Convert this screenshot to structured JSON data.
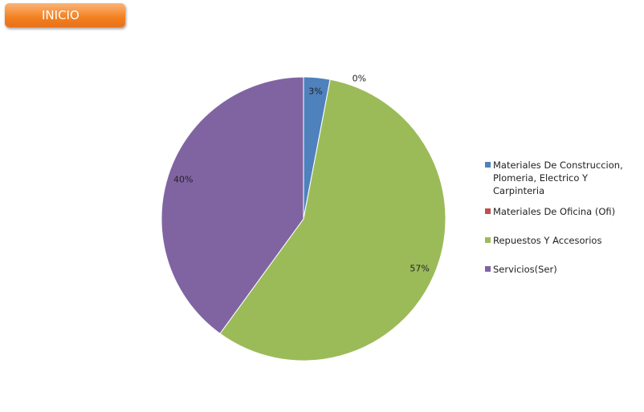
{
  "button": "INICIO",
  "chart_data": {
    "type": "pie",
    "categories": [
      "Materiales De Construccion, Plomeria, Electrico Y Carpinteria",
      "Materiales De Oficina (Ofi)",
      "Repuestos Y Accesorios",
      "Servicios(Ser)"
    ],
    "values": [
      3,
      0,
      57,
      40
    ],
    "value_labels": [
      "3%",
      "0%",
      "57%",
      "40%"
    ],
    "colors": [
      "#4f81bd",
      "#c0504d",
      "#9bbb59",
      "#8064a2"
    ],
    "legend": "right"
  }
}
